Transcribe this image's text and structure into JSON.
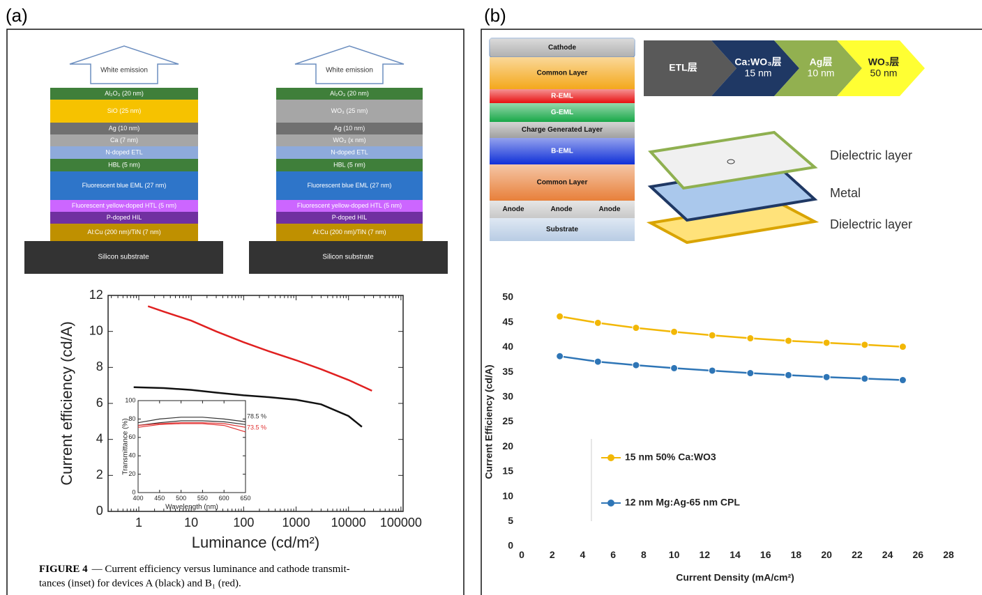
{
  "panels": [
    "(a)",
    "(b)"
  ],
  "stack_a1": {
    "arrow": "White emission",
    "substrate": "Silicon substrate",
    "layers": [
      {
        "label": "Al₂O₃ (20 nm)",
        "color": "#3f7f3a"
      },
      {
        "label": "SiO (25 nm)",
        "color": "#f6c200"
      },
      {
        "label": "Ag (10 nm)",
        "color": "#707070"
      },
      {
        "label": "Ca (7 nm)",
        "color": "#a6a6a6"
      },
      {
        "label": "N-doped ETL",
        "color": "#8eaadb"
      },
      {
        "label": "HBL (5 nm)",
        "color": "#3f7f3a"
      },
      {
        "label": "Fluorescent blue EML (27 nm)",
        "color": "#2e75c9"
      },
      {
        "label": "Fluorescent yellow-doped HTL (5 nm)",
        "color": "#cc66ff"
      },
      {
        "label": "P-doped HIL",
        "color": "#7030a0"
      },
      {
        "label": "Al:Cu (200 nm)/TiN (7 nm)",
        "color": "#bf9000"
      }
    ]
  },
  "stack_a2": {
    "arrow": "White emission",
    "substrate": "Silicon substrate",
    "layers": [
      {
        "label": "Al₂O₃ (20 nm)",
        "color": "#3f7f3a"
      },
      {
        "label": "WO₃ (25 nm)",
        "color": "#a6a6a6"
      },
      {
        "label": "Ag (10 nm)",
        "color": "#707070"
      },
      {
        "label": "WO₃ (x nm)",
        "color": "#a6a6a6"
      },
      {
        "label": "N-doped ETL",
        "color": "#8eaadb"
      },
      {
        "label": "HBL (5 nm)",
        "color": "#3f7f3a"
      },
      {
        "label": "Fluorescent blue EML (27 nm)",
        "color": "#2e75c9"
      },
      {
        "label": "Fluorescent yellow-doped HTL (5 nm)",
        "color": "#cc66ff"
      },
      {
        "label": "P-doped HIL",
        "color": "#7030a0"
      },
      {
        "label": "Al:Cu (200 nm)/TiN (7 nm)",
        "color": "#bf9000"
      }
    ]
  },
  "caption": {
    "label": "FIGURE 4",
    "lines": [
      "— Current efficiency versus luminance and cathode transmit-",
      "tances (inset) for devices A (black) and B₁ (red)."
    ]
  },
  "stack_b": {
    "layers": [
      {
        "label": "Cathode",
        "color": "#b0b0b0"
      },
      {
        "label": "Common Layer",
        "color": "#f4a81c"
      },
      {
        "label": "R-EML",
        "color": "#e81010"
      },
      {
        "label": "G-EML",
        "color": "#18a848"
      },
      {
        "label": "Charge Generated Layer",
        "color": "#a0a0a0"
      },
      {
        "label": "B-EML",
        "color": "#1030d8"
      },
      {
        "label": "Common Layer",
        "color": "#e8803a"
      },
      {
        "labels": [
          "Anode",
          "Anode",
          "Anode"
        ],
        "color": "#c8c8c8"
      },
      {
        "label": "Substrate",
        "color": "#b8cce4"
      }
    ]
  },
  "arrow_chain": [
    {
      "lines": [
        "ETL层"
      ],
      "color": "#595959"
    },
    {
      "lines": [
        "Ca:WO₃层",
        "15 nm"
      ],
      "color": "#1f3864"
    },
    {
      "lines": [
        "Ag层",
        "10 nm"
      ],
      "color": "#92b050"
    },
    {
      "lines": [
        "WO₃层",
        "50 nm"
      ],
      "color": "#ffff33"
    }
  ],
  "layers_3d": [
    "Dielectric layer",
    "Metal",
    "Dielectric layer"
  ],
  "chart_data": [
    {
      "type": "line",
      "xscale": "log",
      "frame": "box",
      "x_label": "Luminance (cd/m²)",
      "y_label": "Current efficiency (cd/A)",
      "xlim": [
        0.26,
        110000
      ],
      "xticks": [
        1,
        10,
        100,
        1000,
        10000,
        100000
      ],
      "ylim": [
        0,
        12
      ],
      "yticks": [
        0,
        2,
        4,
        6,
        8,
        10,
        12
      ],
      "series": [
        {
          "color": "#e02020",
          "x": [
            1.5,
            3,
            10,
            30,
            100,
            300,
            1000,
            3000,
            10000,
            20000,
            28000
          ],
          "values": [
            11.4,
            11.1,
            10.6,
            10.0,
            9.4,
            8.9,
            8.4,
            7.9,
            7.3,
            6.9,
            6.7
          ]
        },
        {
          "color": "#111111",
          "x": [
            0.8,
            3,
            10,
            30,
            100,
            300,
            1000,
            3000,
            10000,
            18000
          ],
          "values": [
            6.9,
            6.85,
            6.75,
            6.6,
            6.45,
            6.35,
            6.2,
            5.95,
            5.3,
            4.7
          ]
        }
      ]
    },
    {
      "type": "line",
      "xscale": "linear",
      "frame": "box",
      "x_label": "Wavelength (nm)",
      "y_label": "Transmittance (%)",
      "xlim": [
        400,
        650
      ],
      "xticks": [
        400,
        450,
        500,
        550,
        600,
        650
      ],
      "ylim": [
        0,
        100
      ],
      "yticks": [
        0,
        20,
        40,
        60,
        80,
        100
      ],
      "annotations": [
        "78.5 %",
        "73.5 %"
      ],
      "series": [
        {
          "color": "#333333",
          "x": [
            400,
            450,
            500,
            550,
            600,
            650
          ],
          "values": [
            76,
            80,
            82,
            82,
            80,
            77
          ]
        },
        {
          "color": "#333333",
          "x": [
            400,
            450,
            500,
            550,
            600,
            650
          ],
          "values": [
            73,
            76,
            78,
            78,
            77,
            74
          ]
        },
        {
          "color": "#e03030",
          "x": [
            400,
            450,
            500,
            550,
            600,
            650
          ],
          "values": [
            71,
            74,
            75,
            75,
            73,
            66
          ]
        },
        {
          "color": "#e03030",
          "x": [
            400,
            450,
            500,
            550,
            600,
            650
          ],
          "values": [
            73,
            75,
            76,
            76,
            75,
            71
          ]
        }
      ]
    },
    {
      "type": "line",
      "xscale": "linear",
      "frame": "none",
      "markers": true,
      "legend": true,
      "x_label": "Current Density (mA/cm²)",
      "y_label": "Current Efficiency (cd/A)",
      "xlim": [
        0,
        28
      ],
      "xticks": [
        0,
        2,
        4,
        6,
        8,
        10,
        12,
        14,
        16,
        18,
        20,
        22,
        24,
        26,
        28
      ],
      "ylim": [
        0,
        50
      ],
      "yticks": [
        0,
        5,
        10,
        15,
        20,
        25,
        30,
        35,
        40,
        45,
        50
      ],
      "series": [
        {
          "name": "15 nm 50% Ca:WO3",
          "color": "#f2b705",
          "x": [
            2.5,
            5,
            7.5,
            10,
            12.5,
            15,
            17.5,
            20,
            22.5,
            25
          ],
          "values": [
            46.2,
            44.9,
            43.9,
            43.1,
            42.4,
            41.8,
            41.3,
            40.9,
            40.5,
            40.1
          ]
        },
        {
          "name": "12 nm Mg:Ag-65 nm CPL",
          "color": "#2e75b6",
          "x": [
            2.5,
            5,
            7.5,
            10,
            12.5,
            15,
            17.5,
            20,
            22.5,
            25
          ],
          "values": [
            38.2,
            37.1,
            36.4,
            35.8,
            35.3,
            34.8,
            34.4,
            34.0,
            33.7,
            33.4
          ]
        }
      ]
    }
  ]
}
